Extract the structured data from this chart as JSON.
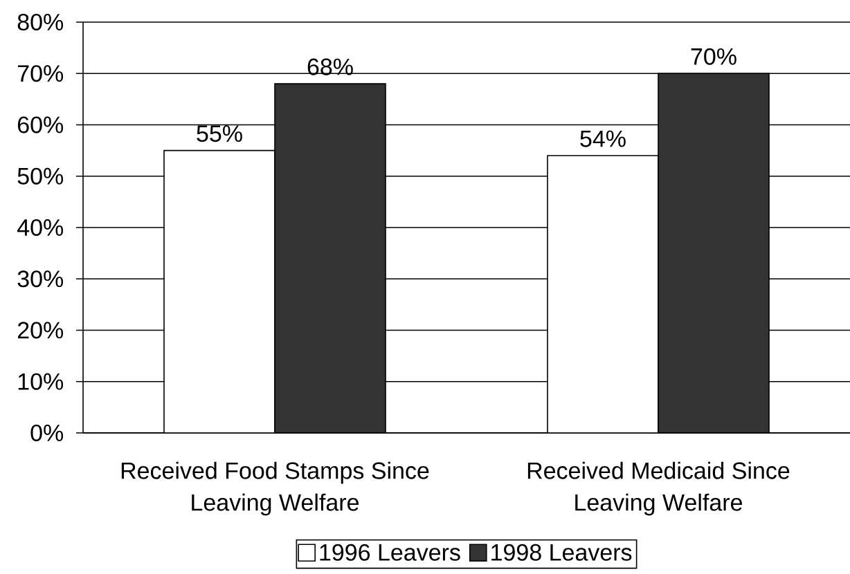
{
  "chart_data": {
    "type": "bar",
    "categories": [
      "Received Food Stamps Since Leaving Welfare",
      "Received Medicaid Since Leaving Welfare"
    ],
    "series": [
      {
        "name": "1996 Leavers",
        "color": "#ffffff",
        "values": [
          55,
          54
        ],
        "value_labels": [
          "55%",
          "54%"
        ]
      },
      {
        "name": "1998 Leavers",
        "color": "#333333",
        "values": [
          68,
          70
        ],
        "value_labels": [
          "68%",
          "70%"
        ]
      }
    ],
    "ylim": [
      0,
      80
    ],
    "yticks": [
      {
        "value": 0,
        "label": "0%"
      },
      {
        "value": 10,
        "label": "10%"
      },
      {
        "value": 20,
        "label": "20%"
      },
      {
        "value": 30,
        "label": "30%"
      },
      {
        "value": 40,
        "label": "40%"
      },
      {
        "value": 50,
        "label": "50%"
      },
      {
        "value": 60,
        "label": "60%"
      },
      {
        "value": 70,
        "label": "70%"
      },
      {
        "value": 80,
        "label": "80%"
      }
    ],
    "grid": "y",
    "legend": "bottom"
  }
}
